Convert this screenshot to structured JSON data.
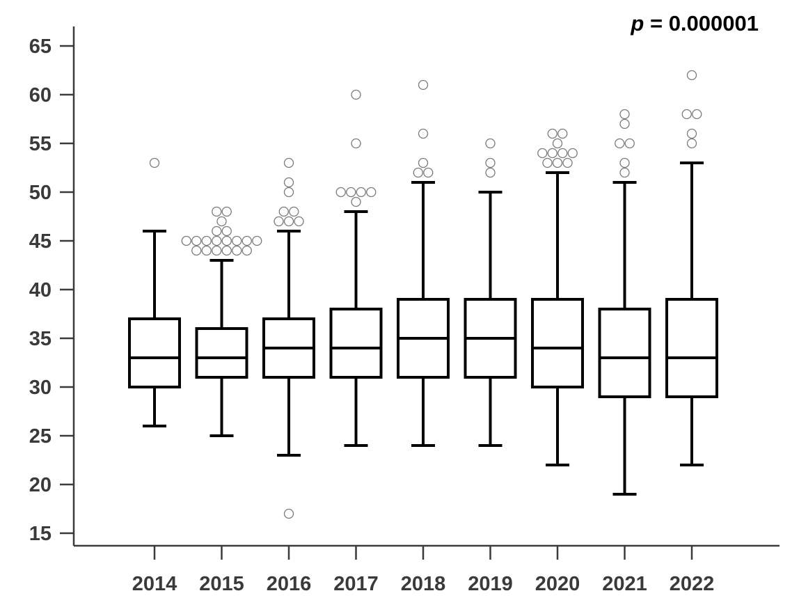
{
  "chart_data": {
    "type": "box",
    "annotation": {
      "p_symbol": "p",
      "text": " = 0.000001"
    },
    "ylim": [
      14,
      67
    ],
    "y_ticks": [
      15,
      20,
      25,
      30,
      35,
      40,
      45,
      50,
      55,
      60,
      65
    ],
    "grid": false,
    "categories": [
      "2014",
      "2015",
      "2016",
      "2017",
      "2018",
      "2019",
      "2020",
      "2021",
      "2022"
    ],
    "boxes": [
      {
        "category": "2014",
        "whisker_low": 26,
        "q1": 30,
        "median": 33,
        "q3": 37,
        "whisker_high": 46,
        "outliers": [
          53
        ]
      },
      {
        "category": "2015",
        "whisker_low": 25,
        "q1": 31,
        "median": 33,
        "q3": 36,
        "whisker_high": 43,
        "outliers": [
          44,
          44,
          44,
          44,
          44,
          44,
          45,
          45,
          45,
          45,
          45,
          45,
          45,
          45,
          46,
          46,
          47,
          48,
          48
        ]
      },
      {
        "category": "2016",
        "whisker_low": 23,
        "q1": 31,
        "median": 34,
        "q3": 37,
        "whisker_high": 46,
        "outliers": [
          17,
          47,
          47,
          47,
          48,
          48,
          50,
          51,
          53
        ]
      },
      {
        "category": "2017",
        "whisker_low": 24,
        "q1": 31,
        "median": 34,
        "q3": 38,
        "whisker_high": 48,
        "outliers": [
          49,
          50,
          50,
          50,
          50,
          55,
          60
        ]
      },
      {
        "category": "2018",
        "whisker_low": 24,
        "q1": 31,
        "median": 35,
        "q3": 39,
        "whisker_high": 51,
        "outliers": [
          52,
          52,
          53,
          56,
          61
        ]
      },
      {
        "category": "2019",
        "whisker_low": 24,
        "q1": 31,
        "median": 35,
        "q3": 39,
        "whisker_high": 50,
        "outliers": [
          52,
          53,
          55
        ]
      },
      {
        "category": "2020",
        "whisker_low": 22,
        "q1": 30,
        "median": 34,
        "q3": 39,
        "whisker_high": 52,
        "outliers": [
          53,
          53,
          53,
          54,
          54,
          54,
          54,
          55,
          56,
          56
        ]
      },
      {
        "category": "2021",
        "whisker_low": 19,
        "q1": 29,
        "median": 33,
        "q3": 38,
        "whisker_high": 51,
        "outliers": [
          52,
          53,
          55,
          55,
          57,
          58
        ]
      },
      {
        "category": "2022",
        "whisker_low": 22,
        "q1": 29,
        "median": 33,
        "q3": 39,
        "whisker_high": 53,
        "outliers": [
          55,
          56,
          58,
          58,
          62
        ]
      }
    ]
  }
}
